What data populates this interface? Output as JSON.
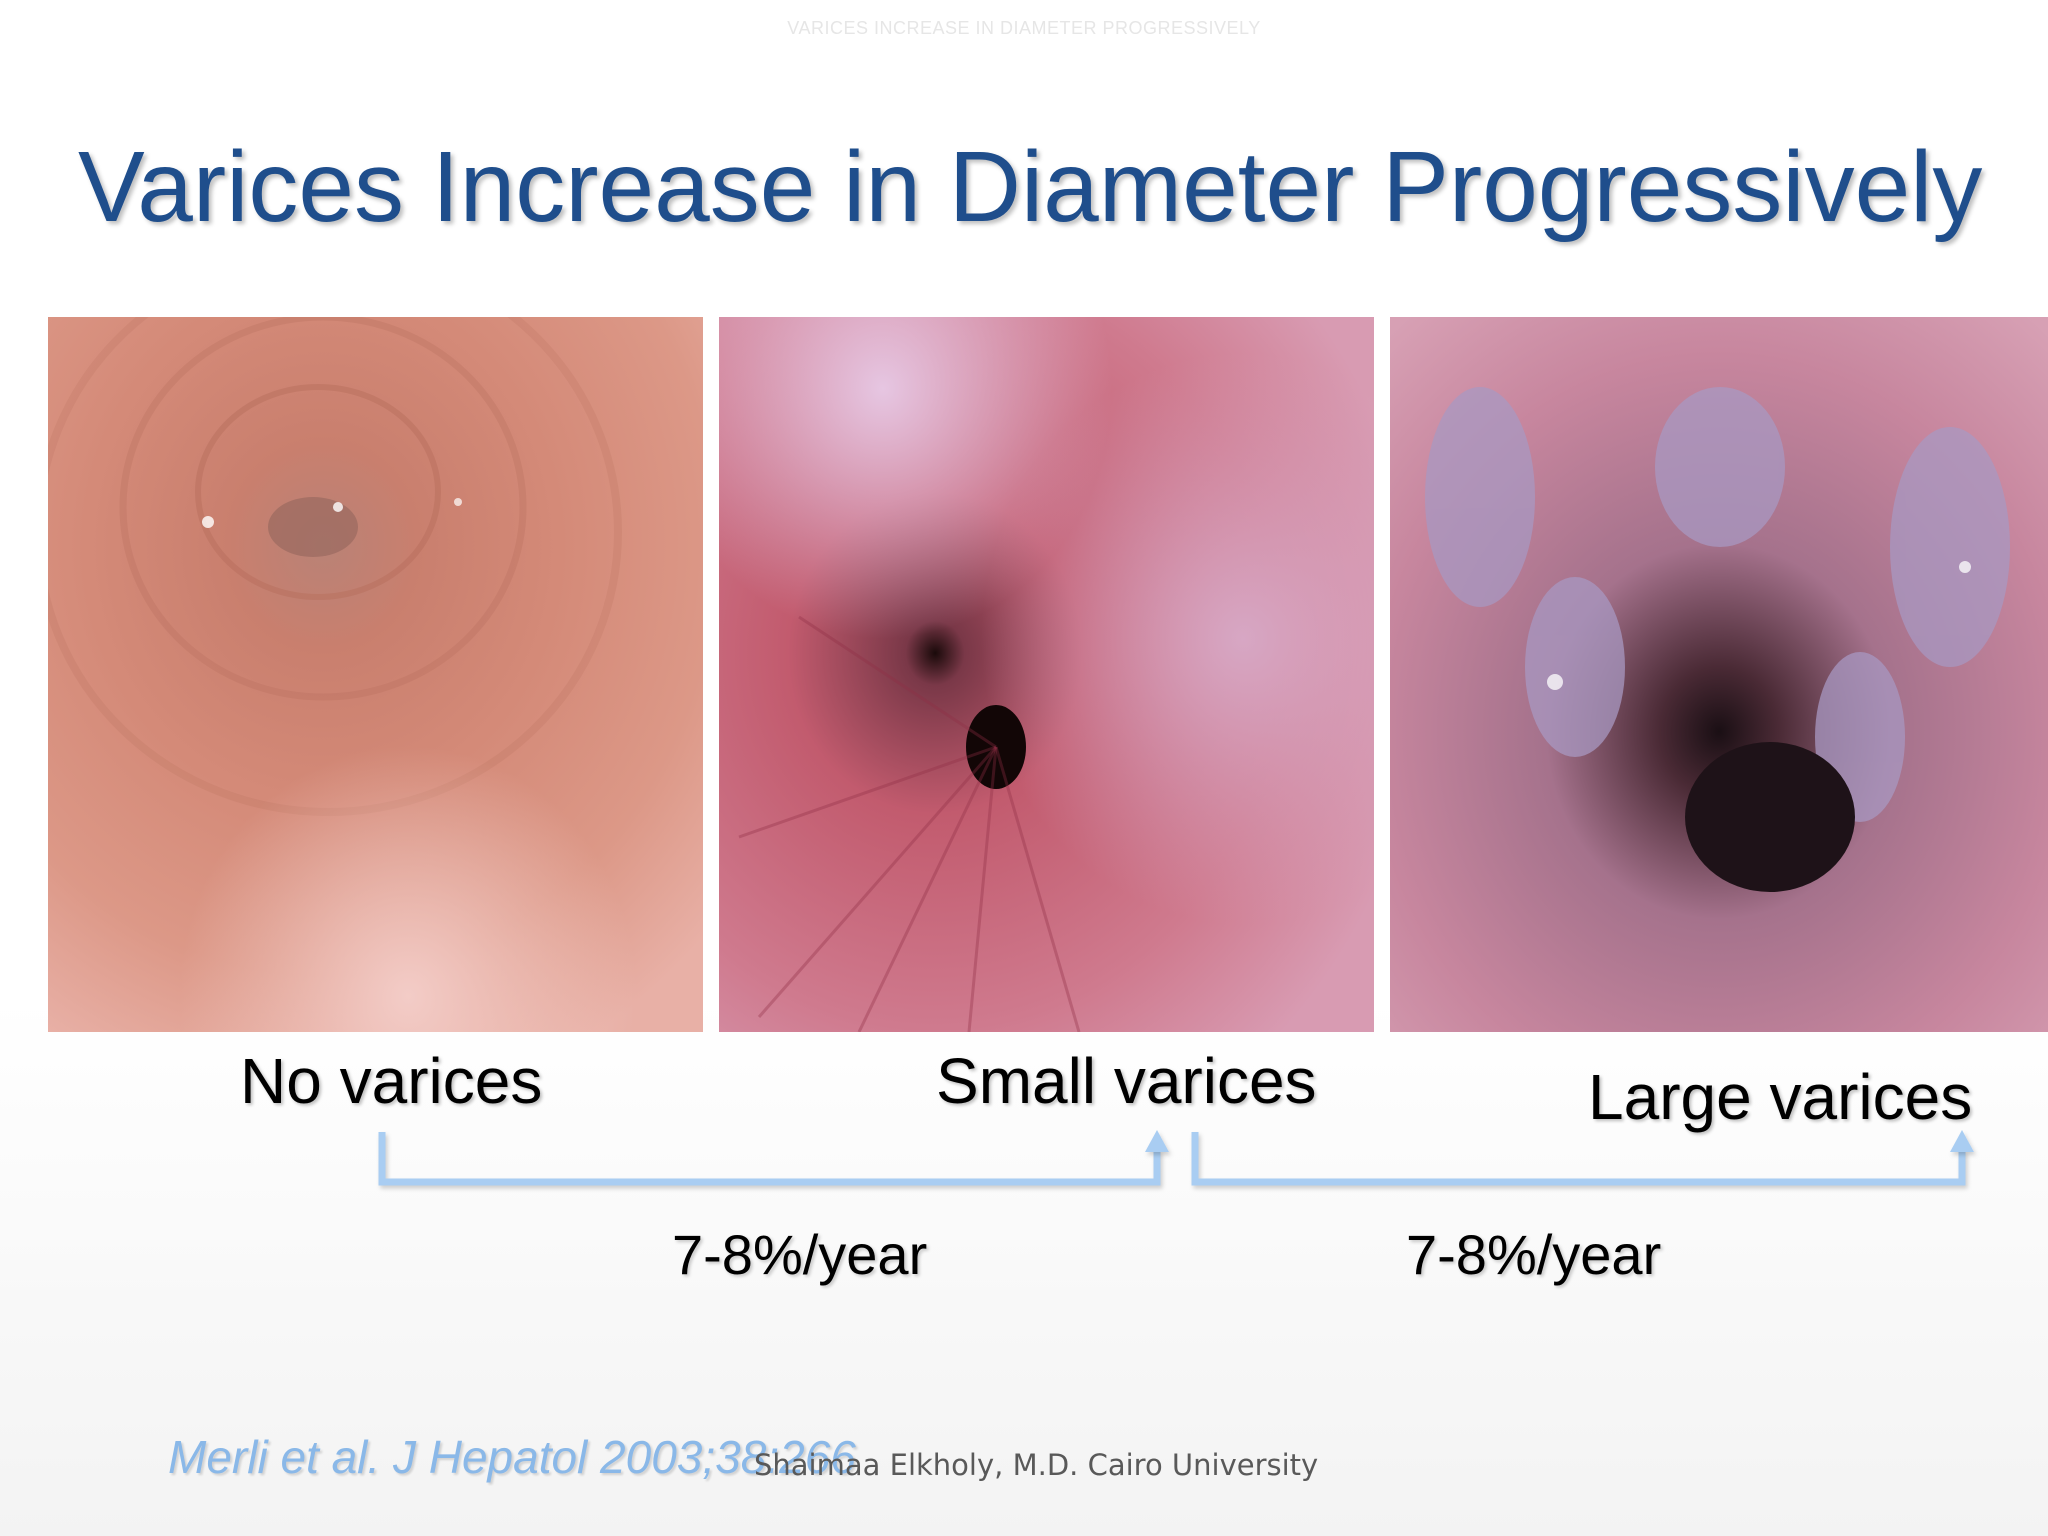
{
  "slide": {
    "header": "VARICES INCREASE IN DIAMETER PROGRESSIVELY",
    "title": "Varices Increase in Diameter Progressively",
    "images": [
      {
        "label": "No varices"
      },
      {
        "label": "Small varices"
      },
      {
        "label": "Large varices"
      }
    ],
    "rates": [
      "7-8%/year",
      "7-8%/year"
    ],
    "citation": "Merli et al. J Hepatol 2003;38:266",
    "footer": "Shaimaa Elkholy, M.D. Cairo University",
    "colors": {
      "title": "#1f4e8c",
      "arrow": "#a9cdf2",
      "citation": "#8ab8e8"
    },
    "icons": [
      "arrow-up-icon"
    ]
  }
}
